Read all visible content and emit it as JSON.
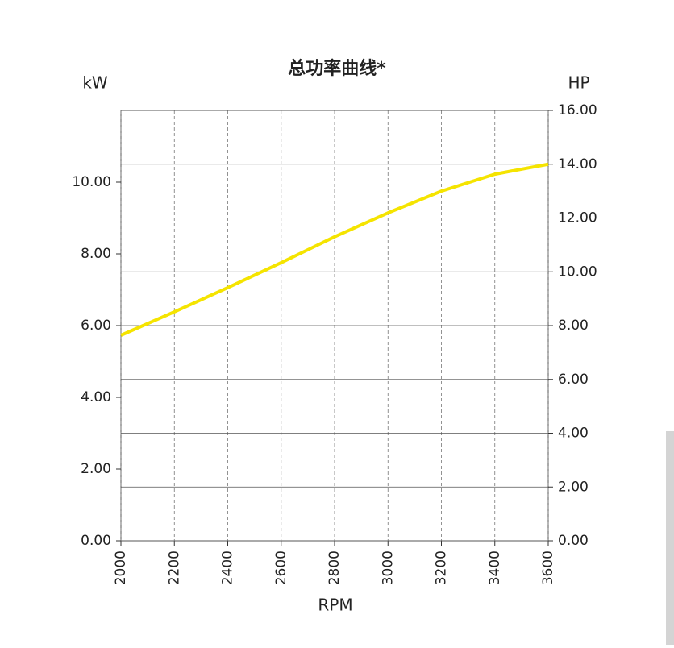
{
  "chart_data": {
    "type": "line",
    "title": "总功率曲线*",
    "x_label": "RPM",
    "y_label": "kW",
    "y2_label": "HP",
    "x": [
      2000,
      2200,
      2400,
      2600,
      2800,
      3000,
      3200,
      3400,
      3600
    ],
    "series": [
      {
        "color": "#f5e400",
        "axis": "y2",
        "values": [
          7.64,
          8.51,
          9.41,
          10.34,
          11.3,
          12.19,
          13.0,
          13.63,
          14.0
        ]
      }
    ],
    "xlim": [
      2000,
      3600
    ],
    "xticks": [
      2000,
      2200,
      2400,
      2600,
      2800,
      3000,
      3200,
      3400,
      3600
    ],
    "ylim": [
      0,
      12
    ],
    "yticks": [
      {
        "value": 0,
        "label": "0.00"
      },
      {
        "value": 2,
        "label": "2.00"
      },
      {
        "value": 4,
        "label": "4.00"
      },
      {
        "value": 6,
        "label": "6.00"
      },
      {
        "value": 8,
        "label": "8.00"
      },
      {
        "value": 10,
        "label": "10.00"
      }
    ],
    "y2lim": [
      0,
      16
    ],
    "y2ticks": [
      {
        "value": 0,
        "label": "0.00"
      },
      {
        "value": 2,
        "label": "2.00"
      },
      {
        "value": 4,
        "label": "4.00"
      },
      {
        "value": 6,
        "label": "6.00"
      },
      {
        "value": 8,
        "label": "8.00"
      },
      {
        "value": 10,
        "label": "10.00"
      },
      {
        "value": 12,
        "label": "12.00"
      },
      {
        "value": 14,
        "label": "14.00"
      },
      {
        "value": 16,
        "label": "16.00"
      }
    ],
    "grid": true
  }
}
